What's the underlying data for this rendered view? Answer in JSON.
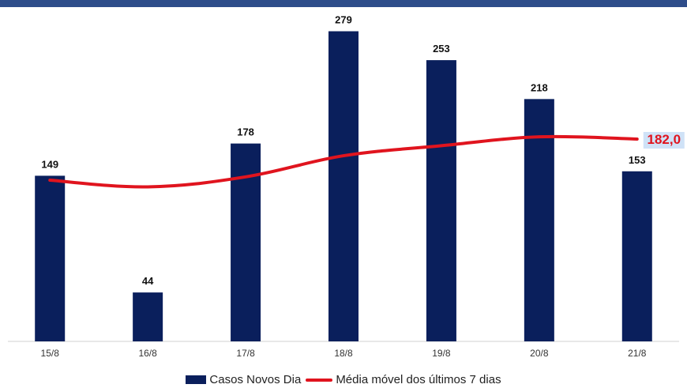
{
  "chart_data": {
    "type": "bar",
    "categories": [
      "15/8",
      "16/8",
      "17/8",
      "18/8",
      "19/8",
      "20/8",
      "21/8"
    ],
    "series": [
      {
        "name": "Casos Novos Dia",
        "type": "bar",
        "values": [
          149,
          44,
          178,
          279,
          253,
          218,
          153
        ],
        "labels": [
          "149",
          "44",
          "178",
          "279",
          "253",
          "218",
          "153"
        ],
        "color": "#0a1f5c"
      },
      {
        "name": "Média móvel dos últimos 7 dias",
        "type": "line",
        "values": [
          145,
          139,
          148,
          167,
          176,
          184,
          182
        ],
        "color": "#e0141e"
      }
    ],
    "annotation": {
      "text": "182,0",
      "color": "#e0141e",
      "background": "#cfe2f7"
    },
    "ylim": [
      0,
      300
    ],
    "grid": false,
    "legend_position": "bottom"
  }
}
